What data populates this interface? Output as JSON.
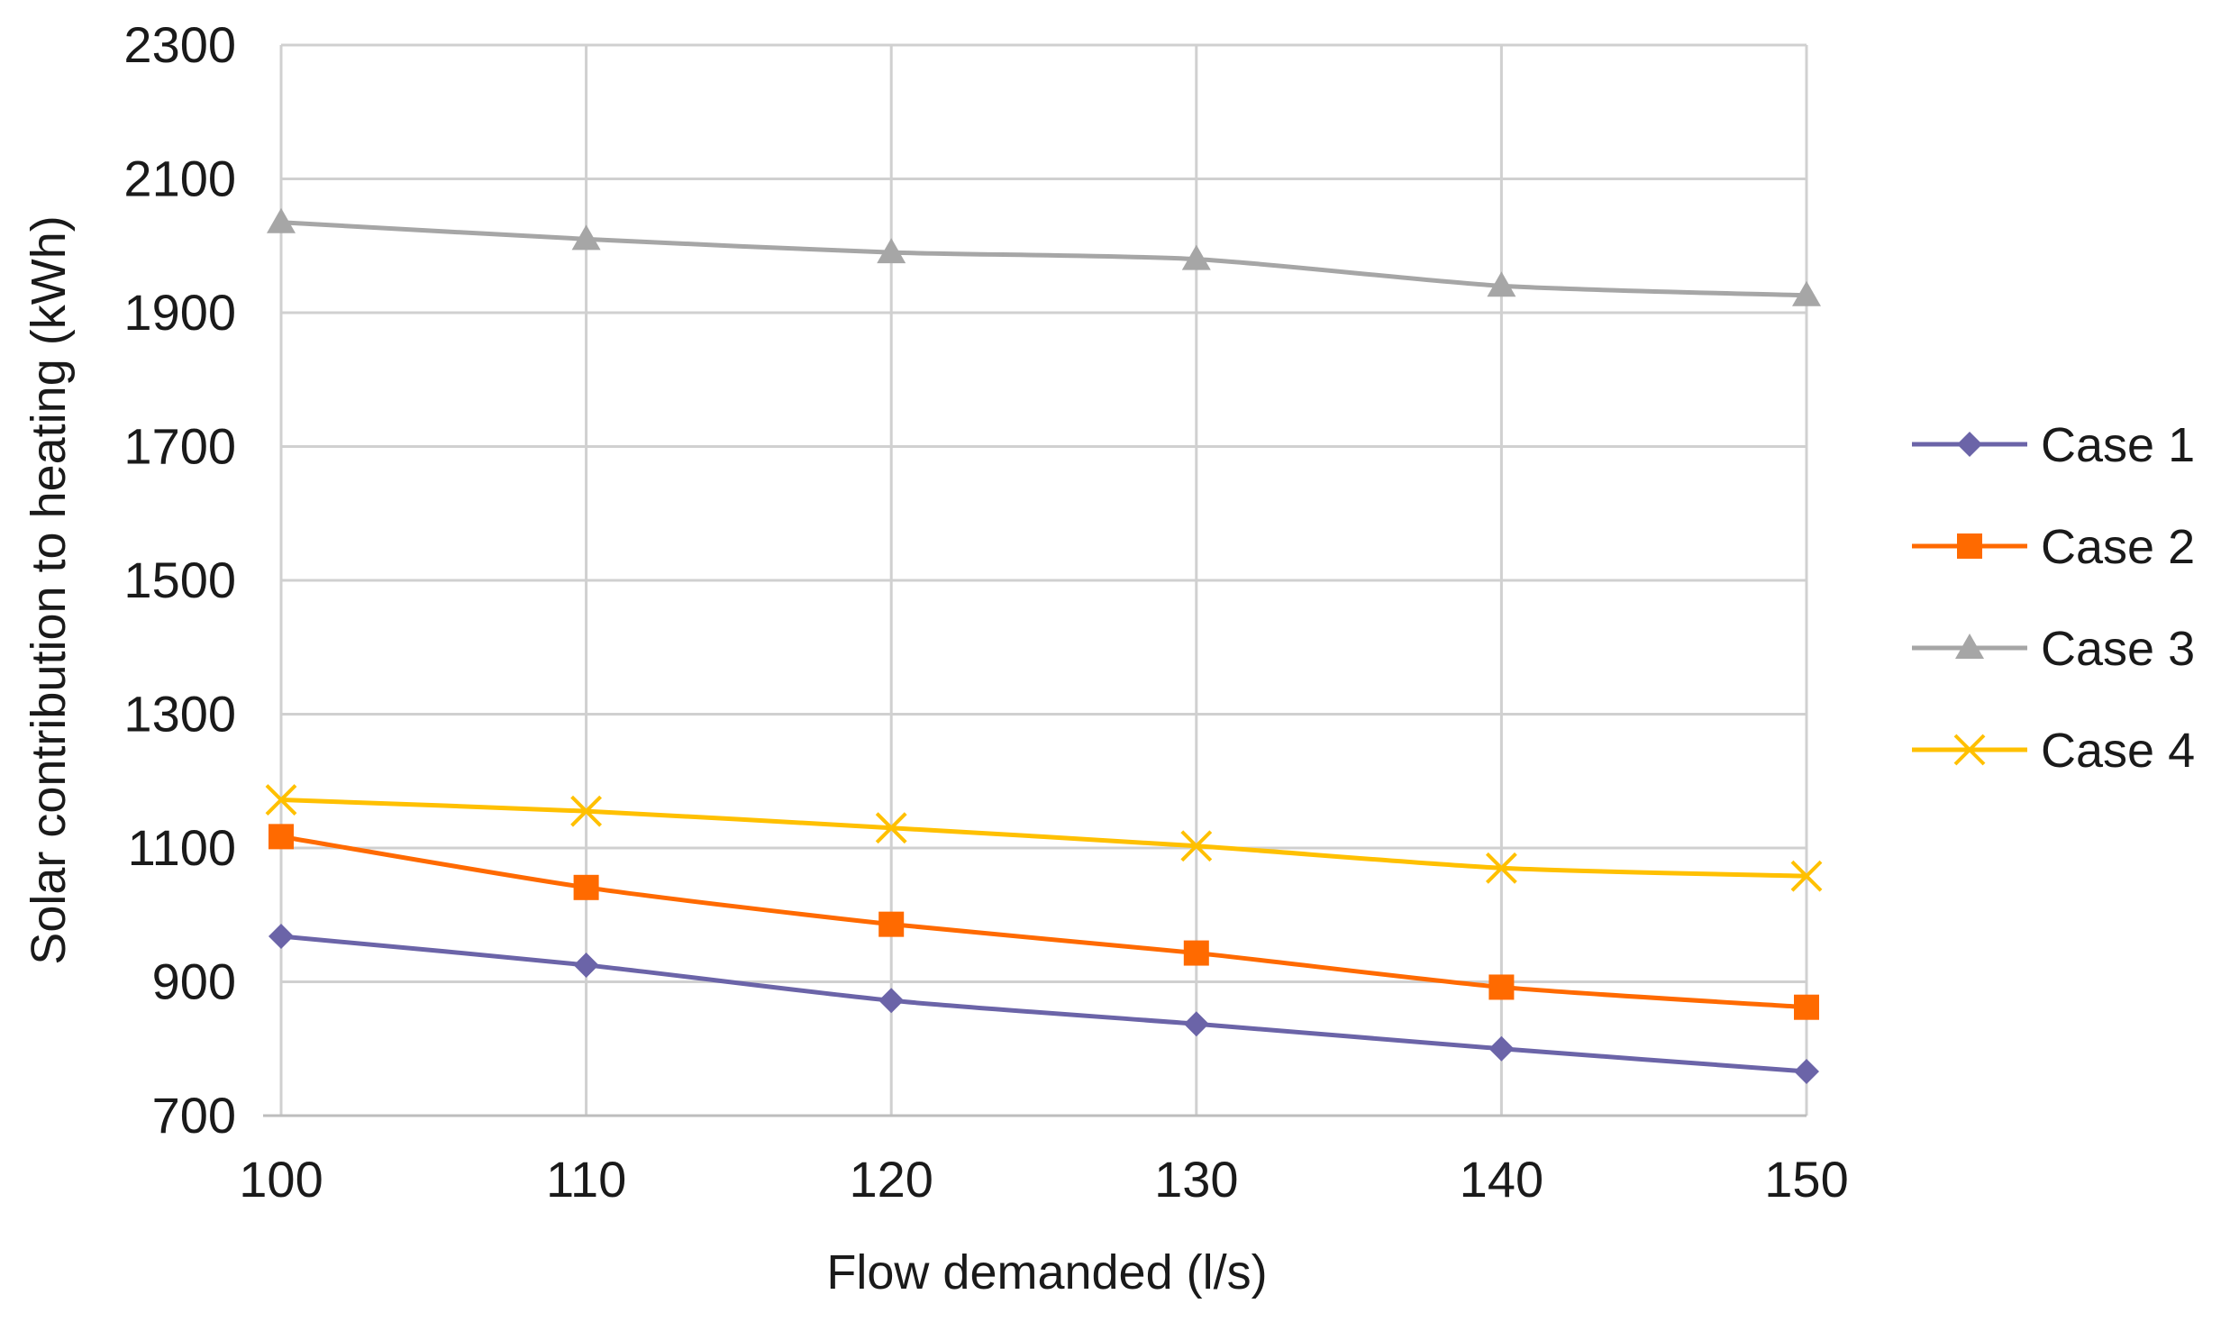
{
  "chart_data": {
    "type": "line",
    "title": "",
    "xlabel": "Flow demanded (l/s)",
    "ylabel": "Solar contribution to heating (kWh)",
    "x": [
      100,
      110,
      120,
      130,
      140,
      150
    ],
    "x_tick_labels": [
      "100",
      "110",
      "120",
      "130",
      "140",
      "150"
    ],
    "xlim": [
      100,
      150
    ],
    "ylim": [
      700,
      2300
    ],
    "y_ticks": [
      700,
      900,
      1100,
      1300,
      1500,
      1700,
      1900,
      2100,
      2300
    ],
    "y_tick_labels": [
      "700",
      "900",
      "1100",
      "1300",
      "1500",
      "1700",
      "1900",
      "2100",
      "2300"
    ],
    "grid": true,
    "legend_position": "right",
    "series": [
      {
        "name": "Case 1",
        "color": "#6b64a8",
        "marker": "diamond",
        "values": [
          968,
          925,
          872,
          837,
          800,
          766
        ]
      },
      {
        "name": "Case 2",
        "color": "#ff6a00",
        "marker": "square",
        "values": [
          1117,
          1041,
          986,
          943,
          892,
          862
        ]
      },
      {
        "name": "Case 3",
        "color": "#a6a6a6",
        "marker": "triangle",
        "values": [
          2035,
          2010,
          1990,
          1980,
          1940,
          1926
        ]
      },
      {
        "name": "Case 4",
        "color": "#ffc000",
        "marker": "x",
        "values": [
          1172,
          1155,
          1130,
          1103,
          1070,
          1058
        ]
      }
    ]
  }
}
